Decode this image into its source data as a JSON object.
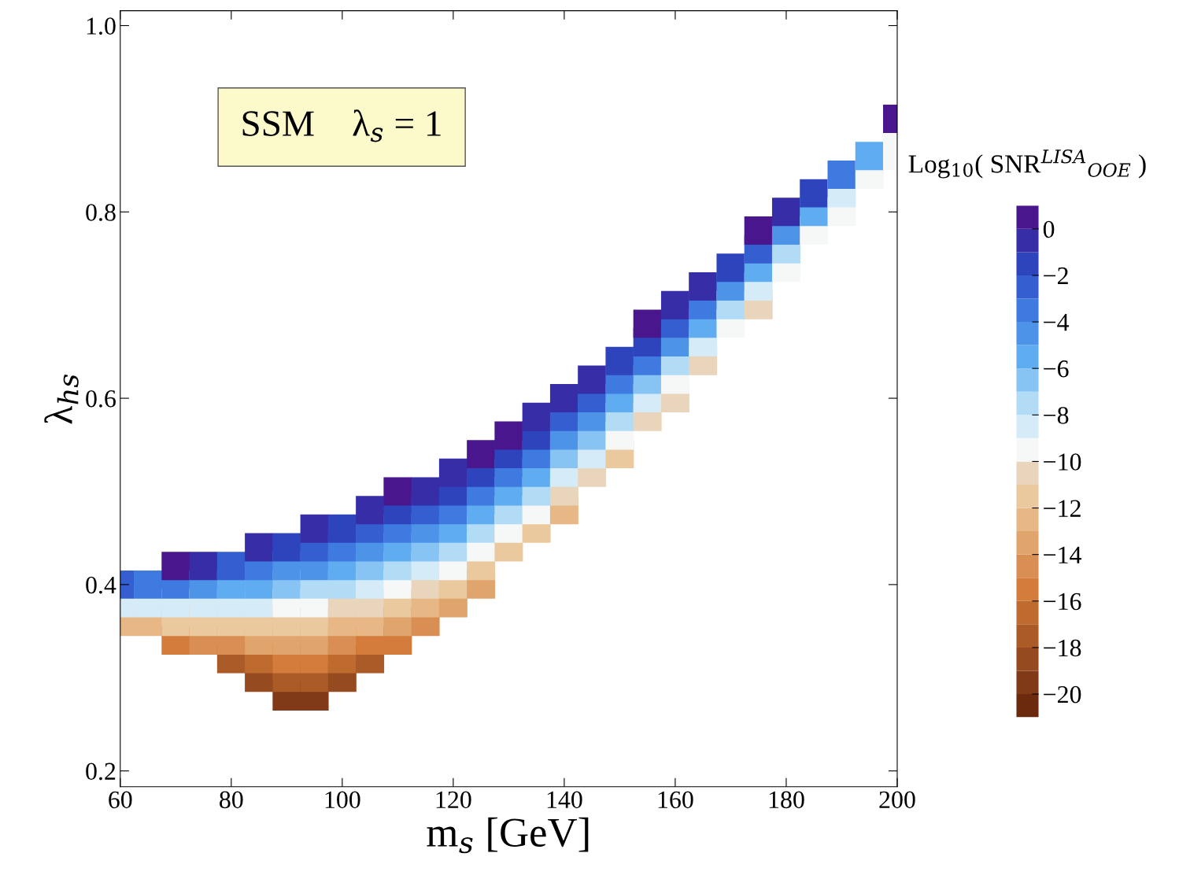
{
  "chart_data": {
    "type": "scatter",
    "xlabel": "m$_{s}$ [GeV]",
    "ylabel": "λ$_{hs}$",
    "clabel": "Log$_{10}$( SNR$^{LISA}$$_{OOE}$ )",
    "annotations": [
      "SSM    λ$_{s}$ = 1"
    ],
    "marker": "square",
    "grid": false,
    "legend": false,
    "xlim": [
      60,
      200
    ],
    "xticks": [
      60,
      80,
      100,
      120,
      140,
      160,
      180,
      200
    ],
    "ylim": [
      0.183,
      1.016
    ],
    "yticks": [
      0.2,
      0.4,
      0.6,
      0.8,
      {
        "value": 1.0,
        "label": "1.0"
      }
    ],
    "clim": [
      -21,
      1
    ],
    "cticks": [
      0,
      {
        "value": -2,
        "label": "−2"
      },
      {
        "value": -4,
        "label": "−4"
      },
      {
        "value": -6,
        "label": "−6"
      },
      {
        "value": -8,
        "label": "−8"
      },
      {
        "value": -10,
        "label": "−10"
      },
      {
        "value": -12,
        "label": "−12"
      },
      {
        "value": -14,
        "label": "−14"
      },
      {
        "value": -16,
        "label": "−16"
      },
      {
        "value": -18,
        "label": "−18"
      },
      {
        "value": -20,
        "label": "−20"
      }
    ],
    "x": [
      60,
      60,
      60,
      65,
      65,
      65,
      70,
      70,
      70,
      70,
      70,
      75,
      75,
      75,
      75,
      75,
      80,
      80,
      80,
      80,
      80,
      80,
      85,
      85,
      85,
      85,
      85,
      85,
      85,
      85,
      90,
      90,
      90,
      90,
      90,
      90,
      90,
      90,
      90,
      95,
      95,
      95,
      95,
      95,
      95,
      95,
      95,
      95,
      95,
      100,
      100,
      100,
      100,
      100,
      100,
      100,
      100,
      100,
      105,
      105,
      105,
      105,
      105,
      105,
      105,
      105,
      105,
      110,
      110,
      110,
      110,
      110,
      110,
      110,
      110,
      110,
      115,
      115,
      115,
      115,
      115,
      115,
      115,
      115,
      120,
      120,
      120,
      120,
      120,
      120,
      120,
      120,
      125,
      125,
      125,
      125,
      125,
      125,
      125,
      125,
      130,
      130,
      130,
      130,
      130,
      130,
      130,
      135,
      135,
      135,
      135,
      135,
      135,
      135,
      140,
      140,
      140,
      140,
      140,
      140,
      140,
      145,
      145,
      145,
      145,
      145,
      145,
      150,
      150,
      150,
      150,
      150,
      150,
      155,
      155,
      155,
      155,
      155,
      155,
      160,
      160,
      160,
      160,
      160,
      160,
      165,
      165,
      165,
      165,
      165,
      170,
      170,
      170,
      170,
      175,
      175,
      175,
      175,
      175,
      180,
      180,
      180,
      180,
      185,
      185,
      185,
      190,
      190,
      190,
      195,
      195,
      200,
      200,
      200
    ],
    "values": [
      0.36,
      0.38,
      0.4,
      0.36,
      0.38,
      0.4,
      0.34,
      0.36,
      0.38,
      0.4,
      0.42,
      0.34,
      0.36,
      0.38,
      0.4,
      0.42,
      0.32,
      0.34,
      0.36,
      0.38,
      0.4,
      0.42,
      0.3,
      0.32,
      0.34,
      0.36,
      0.38,
      0.4,
      0.42,
      0.44,
      0.28,
      0.3,
      0.32,
      0.34,
      0.36,
      0.38,
      0.4,
      0.42,
      0.44,
      0.28,
      0.3,
      0.32,
      0.34,
      0.36,
      0.38,
      0.4,
      0.42,
      0.44,
      0.46,
      0.3,
      0.32,
      0.34,
      0.36,
      0.38,
      0.4,
      0.42,
      0.44,
      0.46,
      0.32,
      0.34,
      0.36,
      0.38,
      0.4,
      0.42,
      0.44,
      0.46,
      0.48,
      0.34,
      0.36,
      0.38,
      0.4,
      0.42,
      0.44,
      0.46,
      0.48,
      0.5,
      0.36,
      0.38,
      0.4,
      0.42,
      0.44,
      0.46,
      0.48,
      0.5,
      0.38,
      0.4,
      0.42,
      0.44,
      0.46,
      0.48,
      0.5,
      0.52,
      0.4,
      0.42,
      0.44,
      0.46,
      0.48,
      0.5,
      0.52,
      0.54,
      0.44,
      0.46,
      0.48,
      0.5,
      0.52,
      0.54,
      0.56,
      0.46,
      0.48,
      0.5,
      0.52,
      0.54,
      0.56,
      0.58,
      0.48,
      0.5,
      0.52,
      0.54,
      0.56,
      0.58,
      0.6,
      0.52,
      0.54,
      0.56,
      0.58,
      0.6,
      0.62,
      0.54,
      0.56,
      0.58,
      0.6,
      0.62,
      0.64,
      0.58,
      0.6,
      0.62,
      0.64,
      0.66,
      0.68,
      0.6,
      0.62,
      0.64,
      0.66,
      0.68,
      0.7,
      0.64,
      0.66,
      0.68,
      0.7,
      0.72,
      0.68,
      0.7,
      0.72,
      0.74,
      0.7,
      0.72,
      0.74,
      0.76,
      0.78,
      0.74,
      0.76,
      0.78,
      0.8,
      0.78,
      0.8,
      0.82,
      0.8,
      0.82,
      0.84,
      0.84,
      0.86,
      0.86,
      0.88,
      0.9
    ],
    "cvalues": [
      -13,
      -9,
      -3,
      -13,
      -9,
      -4,
      -16,
      -12,
      -9,
      -4,
      0,
      -15,
      -12,
      -9,
      -5,
      -1,
      -18,
      -15,
      -12,
      -9,
      -6,
      -3,
      -19,
      -17,
      -14,
      -12,
      -9,
      -6,
      -4,
      -1,
      -20,
      -18,
      -16,
      -14,
      -12,
      -10,
      -7,
      -5,
      -2,
      -20,
      -18,
      -16,
      -14,
      -12,
      -10,
      -8,
      -5,
      -3,
      -1,
      -19,
      -17,
      -15,
      -13,
      -11,
      -8,
      -6,
      -4,
      -2,
      -18,
      -16,
      -13,
      -11,
      -9,
      -7,
      -5,
      -3,
      -1,
      -16,
      -14,
      -12,
      -10,
      -8,
      -6,
      -4,
      -2,
      0,
      -15,
      -13,
      -11,
      -9,
      -7,
      -5,
      -3,
      -1,
      -14,
      -12,
      -10,
      -8,
      -6,
      -4,
      -2,
      -1,
      -14,
      -12,
      -10,
      -8,
      -6,
      -4,
      -2,
      0,
      -12,
      -10,
      -8,
      -6,
      -4,
      -2,
      0,
      -12,
      -10,
      -8,
      -6,
      -4,
      -2,
      -1,
      -13,
      -11,
      -9,
      -7,
      -5,
      -3,
      -1,
      -11,
      -9,
      -7,
      -5,
      -3,
      -1,
      -12,
      -10,
      -8,
      -6,
      -4,
      -2,
      -11,
      -9,
      -7,
      -4,
      -2,
      0,
      -11,
      -10,
      -8,
      -5,
      -3,
      -1,
      -11,
      -9,
      -6,
      -4,
      -1,
      -10,
      -8,
      -5,
      -2,
      -11,
      -9,
      -6,
      -3,
      0,
      -10,
      -8,
      -5,
      -1,
      -10,
      -6,
      -2,
      -10,
      -9,
      -4,
      -10,
      -6,
      -10,
      -10,
      0
    ]
  }
}
